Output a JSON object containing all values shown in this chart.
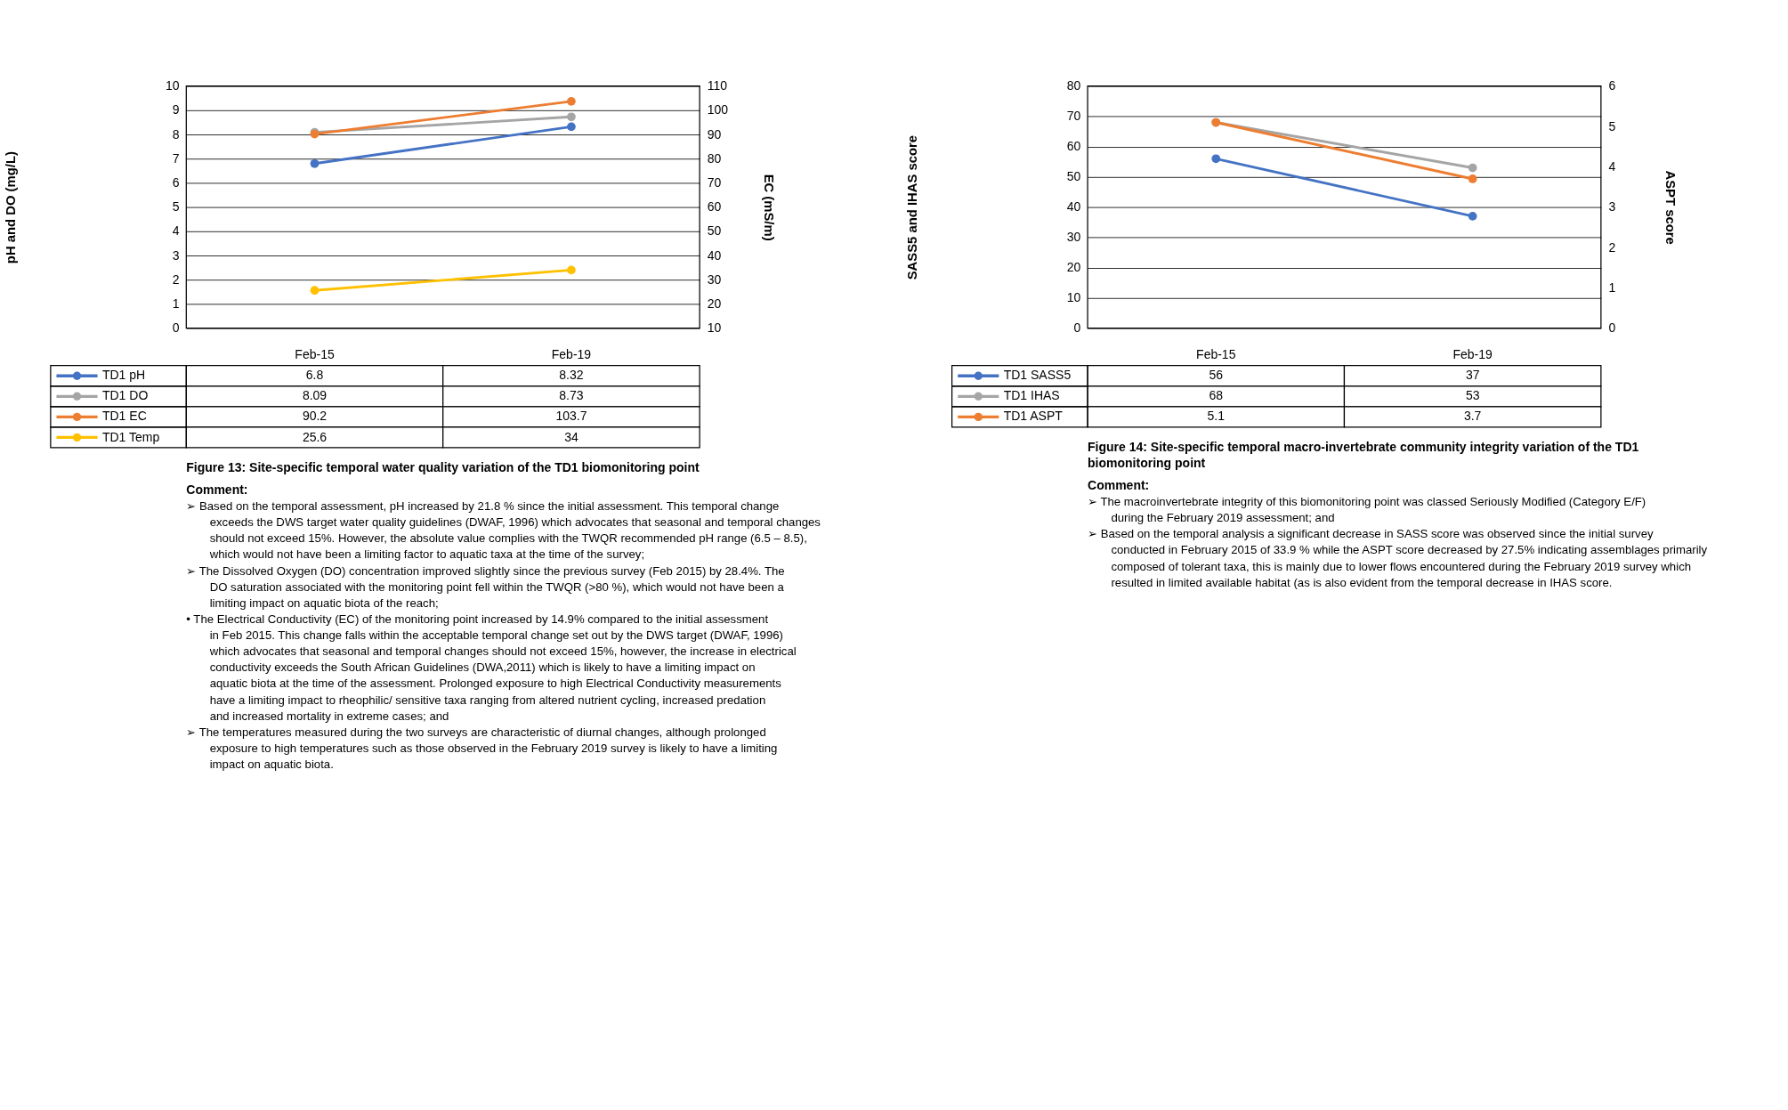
{
  "chart_data": [
    {
      "type": "line",
      "categories": [
        "Feb-15",
        "Feb-19"
      ],
      "ylabel": "pH and DO (mg/L)",
      "y2label": "EC (mS/m)",
      "ylim": [
        0,
        10
      ],
      "yticks": [
        0,
        1,
        2,
        3,
        4,
        5,
        6,
        7,
        8,
        9,
        10
      ],
      "y2lim": [
        10,
        110
      ],
      "y2ticks": [
        10,
        20,
        30,
        40,
        50,
        60,
        70,
        80,
        90,
        100,
        110
      ],
      "grid": "y",
      "legend": "bottom",
      "marker": "circle",
      "line_style": "solid",
      "data_labels": true,
      "series": [
        {
          "name": "TD1 pH",
          "color": "#4472c4",
          "values": [
            6.8,
            8.32
          ],
          "axis": "y"
        },
        {
          "name": "TD1 DO",
          "color": "#a5a5a5",
          "values": [
            8.09,
            8.73
          ],
          "axis": "y"
        },
        {
          "name": "TD1 EC",
          "color": "#ed7d31",
          "values": [
            90.2,
            103.7
          ],
          "axis": "y2"
        },
        {
          "name": "TD1 Temp",
          "color": "#ffc000",
          "values": [
            25.6,
            34
          ],
          "axis": "y2"
        }
      ],
      "annotations": [
        "Figure 13: Site-specific temporal water quality variation of the TD1 biomonitoring point",
        "Comment:",
        "➢ Based on the temporal assessment, pH increased by 21.8 % since the initial assessment. This temporal change exceeds the DWS target water quality guidelines (DWAF, 1996) which advocates that seasonal and temporal changes should not exceed 15%. However, the absolute value complies with the TWQR recommended pH range (6.5 – 8.5), which would not have been a limiting factor to aquatic taxa at the time of the survey;",
        "➢ The Dissolved Oxygen (DO) concentration improved slightly since the previous survey (Feb 2015) by 28.4%. The DO saturation associated with the monitoring point fell within the TWQR (>80 %), which would not have been a limiting impact on aquatic biota of the reach;",
        "• The Electrical Conductivity (EC) of the monitoring point increased by 14.9% compared to the initial assessment in Feb 2015. This change falls within the acceptable temporal change set out by the DWS target (DWAF, 1996) which advocates that seasonal and temporal changes should not exceed 15%, however, the increase in electrical conductivity exceeds the South African Guidelines (DWA,2011) which is likely to have a limiting impact on aquatic biota at the time of the assessment. Prolonged exposure to high Electrical Conductivity measurements have a limiting impact to rheophilic/ sensitive taxa ranging from altered nutrient cycling, increased predation and increased mortality in extreme cases; and",
        "➢ The temperatures measured during the two surveys are characteristic of diurnal changes, although prolonged exposure to high temperatures such as those observed in the February 2019 survey is likely to have a limiting impact on aquatic biota."
      ]
    },
    {
      "type": "line",
      "categories": [
        "Feb-15",
        "Feb-19"
      ],
      "ylabel": "SASS5 and IHAS score",
      "y2label": "ASPT score",
      "ylim": [
        0,
        80
      ],
      "yticks": [
        0,
        10,
        20,
        30,
        40,
        50,
        60,
        70,
        80
      ],
      "y2lim": [
        0,
        6
      ],
      "y2ticks": [
        0,
        1,
        2,
        3,
        4,
        5,
        6
      ],
      "grid": "y",
      "legend": "bottom",
      "marker": "circle",
      "line_style": "solid",
      "data_labels": true,
      "series": [
        {
          "name": "TD1 SASS5",
          "color": "#4472c4",
          "values": [
            56,
            37
          ],
          "axis": "y"
        },
        {
          "name": "TD1 IHAS",
          "color": "#a5a5a5",
          "values": [
            68,
            53
          ],
          "axis": "y"
        },
        {
          "name": "TD1 ASPT",
          "color": "#ed7d31",
          "values": [
            5.1,
            3.7
          ],
          "axis": "y2"
        }
      ],
      "annotations": [
        "Figure 14: Site-specific temporal macro-invertebrate community integrity variation of the TD1 biomonitoring point",
        "Comment:",
        "➢ The macroinvertebrate integrity of this biomonitoring point was classed Seriously Modified (Category E/F) during the February 2019 assessment; and",
        "➢ Based on the temporal analysis a significant decrease in SASS score was observed since the initial survey conducted in February 2015 of 33.9 % while the ASPT score decreased by 27.5% indicating assemblages primarily composed of tolerant taxa, this is mainly due to lower flows encountered during the February 2019 survey which resulted in limited available habitat (as is also evident from the temporal decrease in IHAS score."
      ]
    }
  ]
}
